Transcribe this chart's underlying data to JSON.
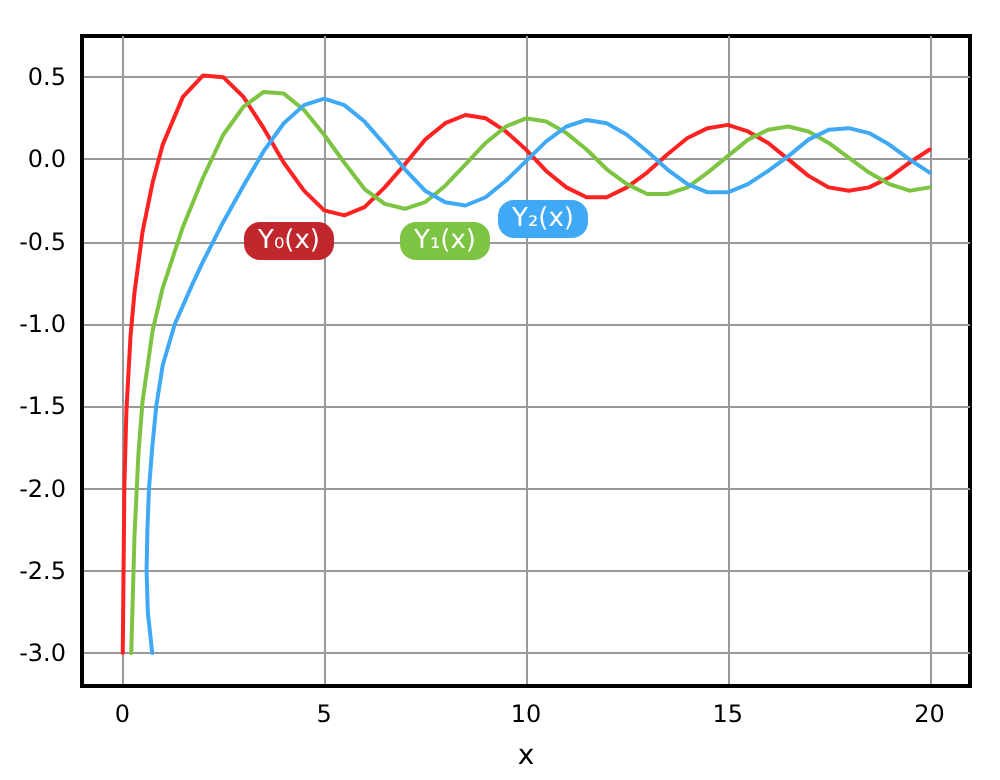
{
  "chart_data": {
    "type": "line",
    "xlabel": "x",
    "xlim": [
      -1,
      21
    ],
    "xticks": [
      0,
      5,
      10,
      15,
      20
    ],
    "ylim": [
      -3.2,
      0.75
    ],
    "yticks": [
      {
        "value": -3,
        "label": "-3.0"
      },
      -2.5,
      {
        "value": -2,
        "label": "-2.0"
      },
      -1.5,
      {
        "value": -1,
        "label": "-1.0"
      },
      -0.5,
      {
        "value": 0,
        "label": "0.0"
      },
      0.5
    ],
    "grid": true,
    "legend": false,
    "marker": "none",
    "line_style": "solid",
    "series": [
      {
        "name": "Y₀(x)",
        "color": "#ff2222",
        "x": [
          0.01,
          0.05,
          0.1,
          0.2,
          0.3,
          0.5,
          0.75,
          1,
          1.5,
          2,
          2.5,
          3,
          3.5,
          4,
          4.5,
          5,
          5.5,
          6,
          6.5,
          7,
          7.5,
          8,
          8.5,
          9,
          9.5,
          10,
          10.5,
          11,
          11.5,
          12,
          12.5,
          13,
          13.5,
          14,
          14.5,
          15,
          15.5,
          16,
          16.5,
          17,
          17.5,
          18,
          18.5,
          19,
          19.5,
          20
        ],
        "values": [
          -3.0,
          -1.98,
          -1.53,
          -1.08,
          -0.81,
          -0.44,
          -0.14,
          0.09,
          0.38,
          0.51,
          0.5,
          0.38,
          0.19,
          -0.02,
          -0.19,
          -0.31,
          -0.34,
          -0.29,
          -0.17,
          -0.03,
          0.12,
          0.22,
          0.27,
          0.25,
          0.17,
          0.06,
          -0.07,
          -0.17,
          -0.23,
          -0.23,
          -0.17,
          -0.08,
          0.03,
          0.13,
          0.19,
          0.21,
          0.17,
          0.1,
          0.0,
          -0.1,
          -0.17,
          -0.19,
          -0.17,
          -0.11,
          -0.02,
          0.06
        ]
      },
      {
        "name": "Y₁(x)",
        "color": "#7dc443",
        "x": [
          0.22,
          0.3,
          0.4,
          0.5,
          0.75,
          1,
          1.5,
          2,
          2.5,
          3,
          3.5,
          4,
          4.5,
          5,
          5.5,
          6,
          6.5,
          7,
          7.5,
          8,
          8.5,
          9,
          9.5,
          10,
          10.5,
          11,
          11.5,
          12,
          12.5,
          13,
          13.5,
          14,
          14.5,
          15,
          15.5,
          16,
          16.5,
          17,
          17.5,
          18,
          18.5,
          19,
          19.5,
          20
        ],
        "values": [
          -3.0,
          -2.29,
          -1.78,
          -1.47,
          -1.04,
          -0.78,
          -0.41,
          -0.11,
          0.15,
          0.32,
          0.41,
          0.4,
          0.3,
          0.15,
          -0.02,
          -0.18,
          -0.27,
          -0.3,
          -0.26,
          -0.16,
          -0.03,
          0.1,
          0.2,
          0.25,
          0.23,
          0.16,
          0.06,
          -0.06,
          -0.15,
          -0.21,
          -0.21,
          -0.17,
          -0.08,
          0.02,
          0.12,
          0.18,
          0.2,
          0.17,
          0.1,
          0.01,
          -0.08,
          -0.15,
          -0.19,
          -0.17
        ]
      },
      {
        "name": "Y₂(x)",
        "color": "#3fa9f5",
        "x": [
          0.74,
          0.63,
          0.6,
          0.62,
          0.66,
          0.74,
          0.84,
          1,
          1.3,
          1.75,
          2,
          2.5,
          3,
          3.5,
          4,
          4.5,
          5,
          5.5,
          6,
          6.5,
          7,
          7.5,
          8,
          8.5,
          9,
          9.5,
          10,
          10.5,
          11,
          11.5,
          12,
          12.5,
          13,
          13.5,
          14,
          14.5,
          15,
          15.5,
          16,
          16.5,
          17,
          17.5,
          18,
          18.5,
          19,
          19.5,
          20
        ],
        "values": [
          -3.0,
          -2.75,
          -2.5,
          -2.25,
          -2.0,
          -1.75,
          -1.5,
          -1.25,
          -1.0,
          -0.75,
          -0.62,
          -0.38,
          -0.16,
          0.05,
          0.22,
          0.33,
          0.37,
          0.33,
          0.23,
          0.09,
          -0.06,
          -0.19,
          -0.26,
          -0.28,
          -0.23,
          -0.13,
          -0.01,
          0.11,
          0.2,
          0.24,
          0.22,
          0.15,
          0.05,
          -0.06,
          -0.15,
          -0.2,
          -0.2,
          -0.15,
          -0.07,
          0.02,
          0.12,
          0.18,
          0.19,
          0.16,
          0.09,
          0.0,
          -0.08
        ]
      }
    ]
  }
}
